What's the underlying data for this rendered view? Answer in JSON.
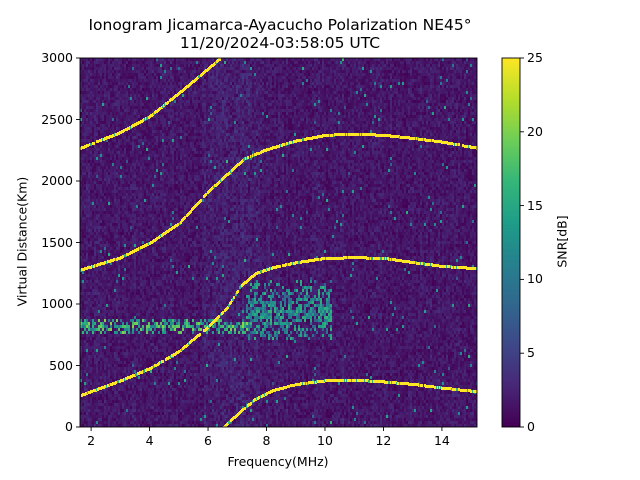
{
  "chart_data": {
    "type": "heatmap",
    "title": "Ionogram Jicamarca-Ayacucho Polarization NE45°",
    "subtitle": "11/20/2024-03:58:05 UTC",
    "xlabel": "Frequency(MHz)",
    "ylabel": "Virtual Distance(Km)",
    "xlim": [
      1.62,
      15.2
    ],
    "ylim": [
      0,
      3000
    ],
    "x_ticks": [
      2,
      4,
      6,
      8,
      10,
      12,
      14
    ],
    "x_tick_labels": [
      "2",
      "4",
      "6",
      "8",
      "10",
      "12",
      "14"
    ],
    "y_ticks": [
      0,
      500,
      1000,
      1500,
      2000,
      2500,
      3000
    ],
    "y_tick_labels": [
      "0",
      "500",
      "1000",
      "1500",
      "2000",
      "2500",
      "3000"
    ],
    "colorbar": {
      "label": "SNR[dB]",
      "range": [
        0,
        25
      ],
      "ticks": [
        0,
        5,
        10,
        15,
        20,
        25
      ],
      "tick_labels": [
        "0",
        "5",
        "10",
        "15",
        "20",
        "25"
      ],
      "colormap": "viridis"
    },
    "background_snr": 1.5,
    "traces": [
      {
        "name": "F-layer trace 1-hop (high)",
        "snr": 25,
        "points": [
          [
            1.62,
            260
          ],
          [
            3,
            380
          ],
          [
            4,
            480
          ],
          [
            5,
            620
          ],
          [
            6,
            820
          ],
          [
            6.6,
            960
          ],
          [
            7.1,
            1150
          ],
          [
            7.6,
            1250
          ],
          [
            8.2,
            1300
          ],
          [
            9,
            1340
          ],
          [
            10,
            1375
          ],
          [
            11,
            1380
          ],
          [
            12,
            1375
          ],
          [
            13,
            1340
          ],
          [
            14,
            1310
          ],
          [
            15.2,
            1290
          ]
        ]
      },
      {
        "name": "F-layer trace 1-hop (low)",
        "snr": 25,
        "points": [
          [
            6.5,
            0
          ],
          [
            7,
            110
          ],
          [
            7.6,
            230
          ],
          [
            8.2,
            300
          ],
          [
            9,
            350
          ],
          [
            10,
            380
          ],
          [
            11,
            385
          ],
          [
            12,
            370
          ],
          [
            13,
            350
          ],
          [
            14,
            320
          ],
          [
            15.2,
            290
          ]
        ]
      },
      {
        "name": "F-layer trace 2-hop",
        "snr": 25,
        "points": [
          [
            1.62,
            1280
          ],
          [
            3,
            1380
          ],
          [
            4,
            1500
          ],
          [
            5,
            1660
          ],
          [
            6,
            1920
          ],
          [
            6.6,
            2050
          ],
          [
            7.2,
            2180
          ],
          [
            8,
            2260
          ],
          [
            9,
            2330
          ],
          [
            10,
            2375
          ],
          [
            11,
            2385
          ],
          [
            12,
            2375
          ],
          [
            13,
            2350
          ],
          [
            14,
            2320
          ],
          [
            15.2,
            2270
          ]
        ]
      },
      {
        "name": "F-layer trace 3-hop",
        "snr": 25,
        "points": [
          [
            1.62,
            2270
          ],
          [
            3,
            2400
          ],
          [
            4,
            2530
          ],
          [
            5,
            2720
          ],
          [
            6,
            2920
          ],
          [
            6.4,
            3000
          ]
        ]
      }
    ],
    "clusters": [
      {
        "name": "Es-layer band",
        "f_range": [
          1.62,
          7.3
        ],
        "d_center": 820,
        "d_spread": 50,
        "snr": 19
      },
      {
        "name": "Es-layer patch",
        "f_range": [
          7.3,
          10.2
        ],
        "d_center": 950,
        "d_spread": 180,
        "snr": 15
      }
    ]
  }
}
